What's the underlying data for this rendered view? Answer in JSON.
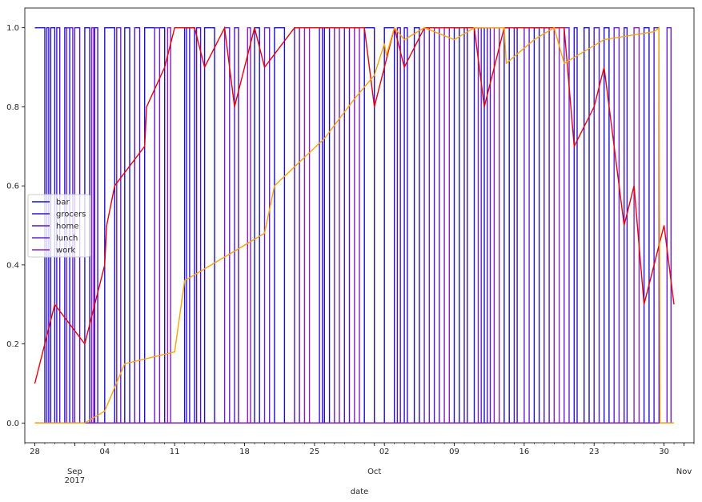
{
  "chart_data": {
    "type": "line",
    "xlabel": "date",
    "x_range": [
      "2017-08-27",
      "2017-11-02"
    ],
    "ylim": [
      -0.05,
      1.05
    ],
    "yticks": [
      0.0,
      0.2,
      0.4,
      0.6,
      0.8,
      1.0
    ],
    "ytick_labels": [
      "0.0",
      "0.2",
      "0.4",
      "0.6",
      "0.8",
      "1.0"
    ],
    "xticks": [
      {
        "date": "2017-08-28",
        "label": "28"
      },
      {
        "date": "2017-09-01",
        "label": "Sep",
        "sublabel": "2017"
      },
      {
        "date": "2017-09-04",
        "label": "04"
      },
      {
        "date": "2017-09-11",
        "label": "11"
      },
      {
        "date": "2017-09-18",
        "label": "18"
      },
      {
        "date": "2017-09-25",
        "label": "25"
      },
      {
        "date": "2017-10-01",
        "label": "Oct"
      },
      {
        "date": "2017-10-02",
        "label": "02"
      },
      {
        "date": "2017-10-09",
        "label": "09"
      },
      {
        "date": "2017-10-16",
        "label": "16"
      },
      {
        "date": "2017-10-23",
        "label": "23"
      },
      {
        "date": "2017-10-30",
        "label": "30"
      },
      {
        "date": "2017-11-01",
        "label": "Nov"
      }
    ],
    "grid": false,
    "legend_position": "center-left",
    "series": [
      {
        "name": "bar",
        "color": "#1a0fd6",
        "kind": "step",
        "transitions": [
          [
            "2017-08-28",
            1
          ],
          [
            "2017-08-29",
            0
          ],
          [
            "2017-08-29.6",
            1
          ],
          [
            "2017-08-30",
            0
          ],
          [
            "2017-08-31",
            1
          ],
          [
            "2017-08-31.5",
            0
          ],
          [
            "2017-09-02",
            1
          ],
          [
            "2017-09-02.5",
            0
          ],
          [
            "2017-09-04",
            1
          ],
          [
            "2017-09-05",
            0
          ],
          [
            "2017-09-06",
            1
          ],
          [
            "2017-09-06.5",
            0
          ],
          [
            "2017-09-08",
            1
          ],
          [
            "2017-09-10",
            0
          ],
          [
            "2017-09-12",
            1
          ],
          [
            "2017-09-13",
            0
          ],
          [
            "2017-09-14",
            1
          ],
          [
            "2017-09-15",
            0
          ],
          [
            "2017-09-19",
            1
          ],
          [
            "2017-09-19.5",
            0
          ],
          [
            "2017-09-21",
            1
          ],
          [
            "2017-09-22",
            0
          ],
          [
            "2017-09-26",
            1
          ],
          [
            "2017-09-26.5",
            0
          ],
          [
            "2017-09-30",
            1
          ],
          [
            "2017-10-01",
            0
          ],
          [
            "2017-10-02",
            1
          ],
          [
            "2017-10-03",
            0
          ],
          [
            "2017-10-05",
            1
          ],
          [
            "2017-10-05.5",
            0
          ],
          [
            "2017-10-09",
            1
          ],
          [
            "2017-10-09.5",
            0
          ],
          [
            "2017-10-11",
            1
          ],
          [
            "2017-10-12",
            0
          ],
          [
            "2017-10-14",
            1
          ],
          [
            "2017-10-14.5",
            0
          ],
          [
            "2017-10-17",
            1
          ],
          [
            "2017-10-17.5",
            0
          ],
          [
            "2017-10-22",
            1
          ],
          [
            "2017-10-22.5",
            0
          ],
          [
            "2017-10-24",
            1
          ],
          [
            "2017-10-24.5",
            0
          ],
          [
            "2017-10-28",
            1
          ],
          [
            "2017-10-28.5",
            0
          ],
          [
            "2017-10-31",
            0
          ]
        ]
      },
      {
        "name": "grocers",
        "color": "#3312d9",
        "kind": "step",
        "transitions": [
          [
            "2017-08-28",
            0
          ],
          [
            "2017-08-29.2",
            1
          ],
          [
            "2017-08-29.4",
            0
          ],
          [
            "2017-09-03",
            1
          ],
          [
            "2017-09-03.3",
            0
          ],
          [
            "2017-09-12.2",
            1
          ],
          [
            "2017-09-12.5",
            0
          ],
          [
            "2017-09-25.5",
            1
          ],
          [
            "2017-09-25.8",
            0
          ],
          [
            "2017-10-04",
            1
          ],
          [
            "2017-10-04.3",
            0
          ],
          [
            "2017-10-10",
            1
          ],
          [
            "2017-10-10.3",
            0
          ],
          [
            "2017-10-15",
            1
          ],
          [
            "2017-10-15.3",
            0
          ],
          [
            "2017-10-21",
            1
          ],
          [
            "2017-10-21.3",
            0
          ],
          [
            "2017-10-26",
            1
          ],
          [
            "2017-10-26.3",
            0
          ],
          [
            "2017-10-31",
            0
          ]
        ]
      },
      {
        "name": "home",
        "color": "#4d17c8",
        "kind": "step",
        "transitions": [
          [
            "2017-08-28",
            0
          ],
          [
            "2017-08-30.2",
            1
          ],
          [
            "2017-08-30.5",
            0
          ],
          [
            "2017-09-01",
            1
          ],
          [
            "2017-09-01.5",
            0
          ],
          [
            "2017-09-07",
            1
          ],
          [
            "2017-09-07.5",
            0
          ],
          [
            "2017-09-13.2",
            1
          ],
          [
            "2017-09-13.6",
            0
          ],
          [
            "2017-09-17",
            1
          ],
          [
            "2017-09-17.4",
            0
          ],
          [
            "2017-09-23",
            1
          ],
          [
            "2017-09-23.5",
            0
          ],
          [
            "2017-09-28",
            1
          ],
          [
            "2017-09-28.5",
            0
          ],
          [
            "2017-10-03.3",
            1
          ],
          [
            "2017-10-03.6",
            0
          ],
          [
            "2017-10-07",
            1
          ],
          [
            "2017-10-07.5",
            0
          ],
          [
            "2017-10-12.3",
            1
          ],
          [
            "2017-10-12.6",
            0
          ],
          [
            "2017-10-18",
            1
          ],
          [
            "2017-10-18.5",
            0
          ],
          [
            "2017-10-23",
            1
          ],
          [
            "2017-10-23.5",
            0
          ],
          [
            "2017-10-29",
            1
          ],
          [
            "2017-10-29.5",
            0
          ],
          [
            "2017-10-31",
            0
          ]
        ]
      },
      {
        "name": "lunch",
        "color": "#6a1fd0",
        "kind": "step",
        "transitions": [
          [
            "2017-08-28",
            0
          ],
          [
            "2017-08-31.2",
            1
          ],
          [
            "2017-08-31.8",
            0
          ],
          [
            "2017-09-05.2",
            1
          ],
          [
            "2017-09-05.6",
            0
          ],
          [
            "2017-09-09",
            1
          ],
          [
            "2017-09-09.5",
            0
          ],
          [
            "2017-09-16",
            1
          ],
          [
            "2017-09-16.5",
            0
          ],
          [
            "2017-09-20",
            1
          ],
          [
            "2017-09-20.5",
            0
          ],
          [
            "2017-09-27",
            1
          ],
          [
            "2017-09-27.5",
            0
          ],
          [
            "2017-10-06",
            1
          ],
          [
            "2017-10-06.5",
            0
          ],
          [
            "2017-10-11.4",
            1
          ],
          [
            "2017-10-11.7",
            0
          ],
          [
            "2017-10-16",
            1
          ],
          [
            "2017-10-16.5",
            0
          ],
          [
            "2017-10-20",
            1
          ],
          [
            "2017-10-20.5",
            0
          ],
          [
            "2017-10-25",
            1
          ],
          [
            "2017-10-25.5",
            0
          ],
          [
            "2017-10-30.3",
            1
          ],
          [
            "2017-10-30.7",
            0
          ],
          [
            "2017-10-31",
            0
          ]
        ]
      },
      {
        "name": "work",
        "color": "#8a1fbf",
        "kind": "step",
        "transitions": [
          [
            "2017-08-28",
            0
          ],
          [
            "2017-09-02.7",
            1
          ],
          [
            "2017-09-02.9",
            0
          ],
          [
            "2017-09-10.3",
            1
          ],
          [
            "2017-09-10.6",
            0
          ],
          [
            "2017-09-18.3",
            1
          ],
          [
            "2017-09-18.6",
            0
          ],
          [
            "2017-09-24",
            1
          ],
          [
            "2017-09-24.5",
            0
          ],
          [
            "2017-09-29",
            1
          ],
          [
            "2017-09-29.5",
            0
          ],
          [
            "2017-10-08",
            1
          ],
          [
            "2017-10-08.5",
            0
          ],
          [
            "2017-10-13",
            1
          ],
          [
            "2017-10-13.5",
            0
          ],
          [
            "2017-10-19",
            1
          ],
          [
            "2017-10-19.5",
            0
          ],
          [
            "2017-10-27",
            1
          ],
          [
            "2017-10-27.5",
            0
          ],
          [
            "2017-10-31",
            0
          ]
        ]
      },
      {
        "name": "",
        "color": "#e8000b",
        "kind": "line",
        "points": [
          [
            "2017-08-28",
            0.1
          ],
          [
            "2017-08-30",
            0.3
          ],
          [
            "2017-09-02",
            0.2
          ],
          [
            "2017-09-04",
            0.4
          ],
          [
            "2017-09-04.2",
            0.5
          ],
          [
            "2017-09-05",
            0.6
          ],
          [
            "2017-09-08",
            0.7
          ],
          [
            "2017-09-08.2",
            0.8
          ],
          [
            "2017-09-10",
            0.9
          ],
          [
            "2017-09-11",
            1.0
          ],
          [
            "2017-09-13",
            1.0
          ],
          [
            "2017-09-14",
            0.9
          ],
          [
            "2017-09-16",
            1.0
          ],
          [
            "2017-09-17",
            0.8
          ],
          [
            "2017-09-19",
            1.0
          ],
          [
            "2017-09-20",
            0.9
          ],
          [
            "2017-09-23",
            1.0
          ],
          [
            "2017-09-30",
            1.0
          ],
          [
            "2017-10-01",
            0.8
          ],
          [
            "2017-10-03",
            1.0
          ],
          [
            "2017-10-04",
            0.9
          ],
          [
            "2017-10-06",
            1.0
          ],
          [
            "2017-10-11",
            1.0
          ],
          [
            "2017-10-12",
            0.8
          ],
          [
            "2017-10-14",
            1.0
          ],
          [
            "2017-10-20",
            1.0
          ],
          [
            "2017-10-21",
            0.7
          ],
          [
            "2017-10-23",
            0.8
          ],
          [
            "2017-10-24",
            0.9
          ],
          [
            "2017-10-26",
            0.5
          ],
          [
            "2017-10-27",
            0.6
          ],
          [
            "2017-10-28",
            0.3
          ],
          [
            "2017-10-29",
            0.4
          ],
          [
            "2017-10-30",
            0.5
          ],
          [
            "2017-10-31",
            0.3
          ]
        ]
      },
      {
        "name": "",
        "color": "#ffa500",
        "kind": "line",
        "points": [
          [
            "2017-08-28",
            0.0
          ],
          [
            "2017-09-02",
            0.0
          ],
          [
            "2017-09-04",
            0.03
          ],
          [
            "2017-09-06",
            0.15
          ],
          [
            "2017-09-11",
            0.18
          ],
          [
            "2017-09-12",
            0.36
          ],
          [
            "2017-09-16",
            0.42
          ],
          [
            "2017-09-20",
            0.48
          ],
          [
            "2017-09-21",
            0.6
          ],
          [
            "2017-09-26",
            0.72
          ],
          [
            "2017-09-29",
            0.82
          ],
          [
            "2017-10-01",
            0.88
          ],
          [
            "2017-10-02",
            0.96
          ],
          [
            "2017-10-02.2",
            0.93
          ],
          [
            "2017-10-03",
            1.0
          ],
          [
            "2017-10-04",
            0.97
          ],
          [
            "2017-10-06",
            1.0
          ],
          [
            "2017-10-09",
            0.97
          ],
          [
            "2017-10-11",
            1.0
          ],
          [
            "2017-10-14",
            1.0
          ],
          [
            "2017-10-14.2",
            0.91
          ],
          [
            "2017-10-17",
            0.97
          ],
          [
            "2017-10-19",
            1.0
          ],
          [
            "2017-10-20",
            0.91
          ],
          [
            "2017-10-22",
            0.94
          ],
          [
            "2017-10-24",
            0.97
          ],
          [
            "2017-10-29",
            0.99
          ],
          [
            "2017-10-29.5",
            1.0
          ],
          [
            "2017-10-29.6",
            0.0
          ],
          [
            "2017-10-31",
            0.0
          ]
        ]
      }
    ],
    "legend": [
      "bar",
      "grocers",
      "home",
      "lunch",
      "work"
    ]
  }
}
